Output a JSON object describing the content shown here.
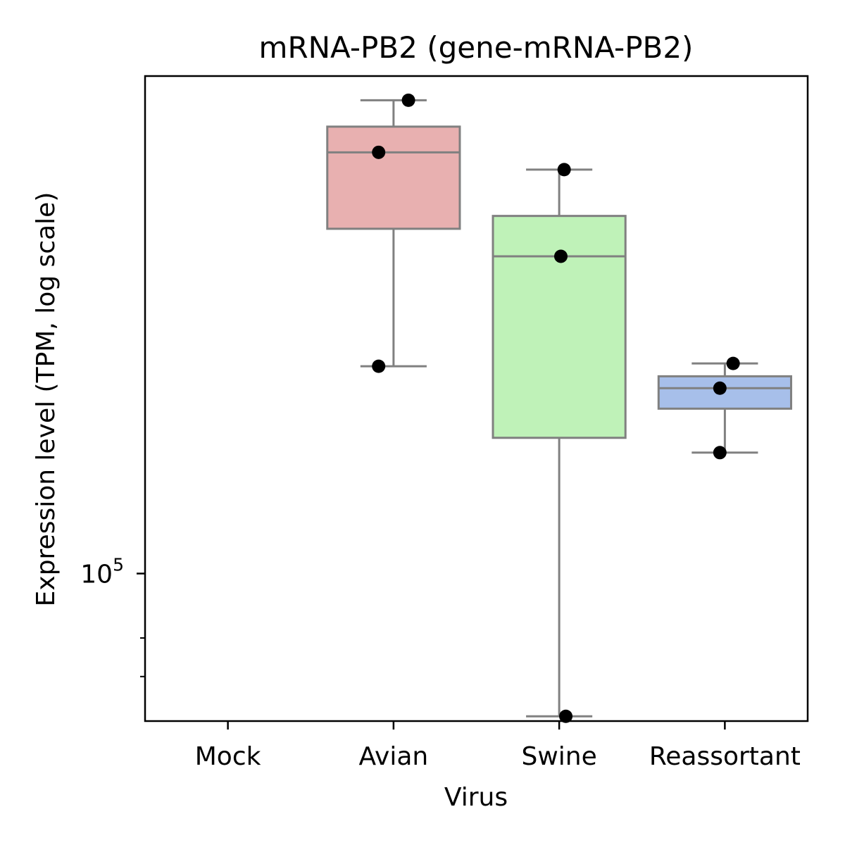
{
  "chart_data": {
    "type": "box",
    "title": "mRNA-PB2 (gene-mRNA-PB2)",
    "xlabel": "Virus",
    "ylabel": "Expression level (TPM, log scale)",
    "y_scale": "log",
    "ylim": [
      60000,
      560000
    ],
    "categories": [
      "Mock",
      "Avian",
      "Swine",
      "Reassortant"
    ],
    "y_ticks_major": [
      {
        "value": 100000,
        "base": "10",
        "exponent": "5"
      }
    ],
    "y_ticks_minor": [
      80000,
      70000
    ],
    "boxes": [
      {
        "category": "Mock",
        "color": null,
        "q1": null,
        "median": null,
        "q3": null,
        "whisker_low": null,
        "whisker_high": null
      },
      {
        "category": "Avian",
        "color": "#e8b0b0",
        "q1": 330000,
        "median": 430000,
        "q3": 470000,
        "whisker_low": 205000,
        "whisker_high": 515000
      },
      {
        "category": "Swine",
        "color": "#bff2b8",
        "q1": 160000,
        "median": 300000,
        "q3": 345000,
        "whisker_low": 61000,
        "whisker_high": 405000
      },
      {
        "category": "Reassortant",
        "color": "#a7bfea",
        "q1": 177000,
        "median": 190000,
        "q3": 198000,
        "whisker_low": 152000,
        "whisker_high": 207000
      }
    ],
    "points": [
      {
        "category": "Avian",
        "jitter": 0.09,
        "value": 515000
      },
      {
        "category": "Avian",
        "jitter": -0.09,
        "value": 430000
      },
      {
        "category": "Avian",
        "jitter": -0.09,
        "value": 205000
      },
      {
        "category": "Swine",
        "jitter": 0.03,
        "value": 405000
      },
      {
        "category": "Swine",
        "jitter": 0.01,
        "value": 300000
      },
      {
        "category": "Swine",
        "jitter": 0.04,
        "value": 61000
      },
      {
        "category": "Reassortant",
        "jitter": 0.05,
        "value": 207000
      },
      {
        "category": "Reassortant",
        "jitter": -0.03,
        "value": 190000
      },
      {
        "category": "Reassortant",
        "jitter": -0.03,
        "value": 152000
      }
    ],
    "box_edge_color": "#808080",
    "point_color": "#000000",
    "grid": false,
    "legend": "none"
  }
}
